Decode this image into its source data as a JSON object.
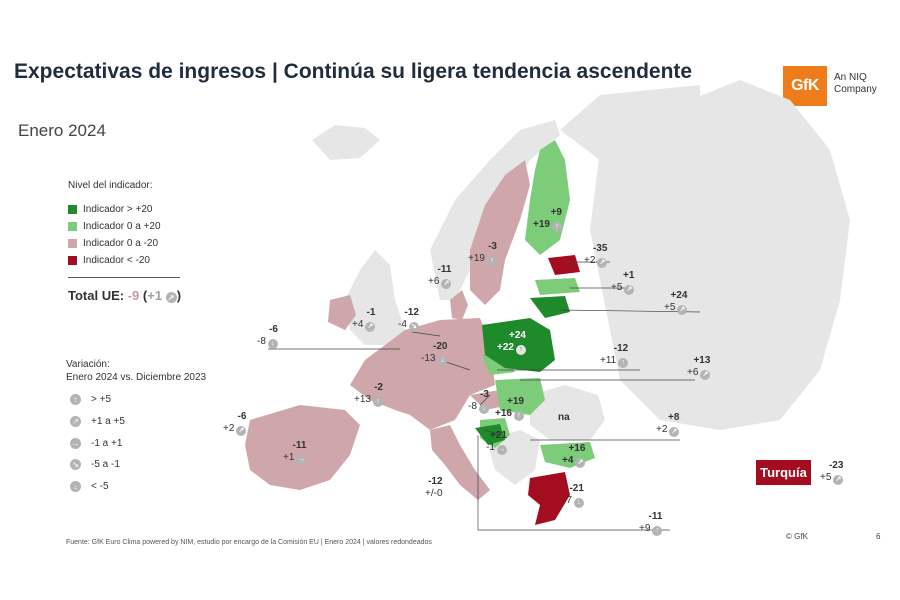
{
  "title": "Expectativas de ingresos | Continúa su ligera tendencia ascendente",
  "subtitle": "Enero 2024",
  "logo": {
    "mark": "GfK",
    "tagline_1": "An NIQ",
    "tagline_2": "Company"
  },
  "legend": {
    "title": "Nivel del indicador:",
    "items": [
      {
        "label": "Indicador > +20",
        "color": "#1e8a2a"
      },
      {
        "label": "Indicador 0 a +20",
        "color": "#7dcc7a"
      },
      {
        "label": "Indicador 0 a -20",
        "color": "#cfa7ab"
      },
      {
        "label": "Indicador < -20",
        "color": "#a40d1f"
      }
    ],
    "total_label": "Total UE:",
    "total_value": "-9",
    "total_change": "+1"
  },
  "variation": {
    "title_1": "Variación:",
    "title_2": "Enero 2024 vs. Diciembre 2023",
    "items": [
      {
        "label": "> +5",
        "icon": "arrow-up-icon"
      },
      {
        "label": "+1 a +5",
        "icon": "arrow-up-right-icon"
      },
      {
        "label": "-1 a +1",
        "icon": "arrow-right-icon"
      },
      {
        "label": "-5 a -1",
        "icon": "arrow-down-right-icon"
      },
      {
        "label": "< -5",
        "icon": "arrow-down-icon"
      }
    ]
  },
  "countries": {
    "finland": {
      "value": "+9",
      "change": "+19"
    },
    "sweden": {
      "value": "-3",
      "change": "+19"
    },
    "denmark": {
      "value": "-11",
      "change": "+6"
    },
    "estonia": {
      "value": "-35",
      "change": "+2"
    },
    "latvia": {
      "value": "+1",
      "change": "+5"
    },
    "lithuania": {
      "value": "+24",
      "change": "+5"
    },
    "poland": {
      "value": "+24",
      "change": "+22"
    },
    "ireland": {
      "value": "-1",
      "change": "+4"
    },
    "netherlands": {
      "value": "-12",
      "change": "-4"
    },
    "belgium": {
      "value": "-6",
      "change": "-8"
    },
    "germany": {
      "value": "-20",
      "change": "-13"
    },
    "czechia": {
      "value": "-12",
      "change": "+11"
    },
    "slovakia": {
      "value": "+13",
      "change": "+6"
    },
    "france": {
      "value": "-2",
      "change": "+13"
    },
    "austria": {
      "value": "-3",
      "change": "-8"
    },
    "hungary": {
      "value": "+19",
      "change": "+16"
    },
    "romania": {
      "value": "na"
    },
    "slovenia": {
      "value": "+8",
      "change": "+2"
    },
    "croatia": {
      "value": "+21",
      "change": "-1"
    },
    "bulgaria": {
      "value": "+16",
      "change": "+4"
    },
    "portugal": {
      "value": "-6",
      "change": "+2"
    },
    "spain": {
      "value": "-11",
      "change": "+1"
    },
    "italy": {
      "value": "-12",
      "change": "+/-0"
    },
    "greece": {
      "value": "-21",
      "change": "-7"
    },
    "cyprus": {
      "value": "-11",
      "change": "+9"
    },
    "turkey": {
      "name": "Turquía",
      "value": "-23",
      "change": "+5"
    }
  },
  "colors": {
    "strong_positive": "#1e8a2a",
    "positive": "#7dcc7a",
    "negative": "#cfa7ab",
    "strong_negative": "#a40d1f",
    "non_eu": "#e6e6e6",
    "accent": "#ef7c1a"
  },
  "footer": {
    "source": "Fuente: GfK Euro Clima powered by NIM, estudio por encargo de la Comisión EU | Enero 2024 | valores redondeados",
    "copyright": "© GfK",
    "page": "6"
  }
}
